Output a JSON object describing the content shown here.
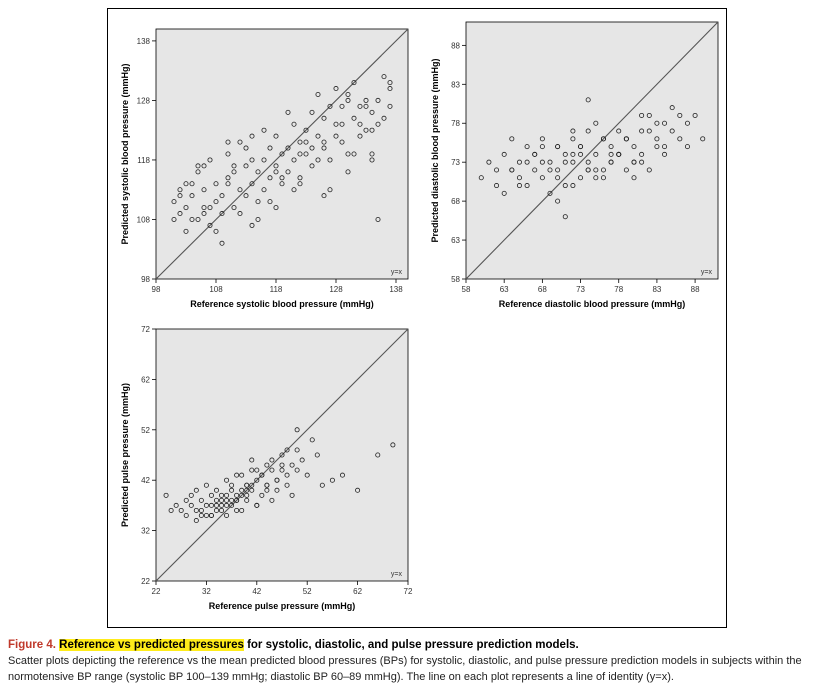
{
  "chart_data": [
    {
      "type": "scatter",
      "xlabel": "Reference systolic blood pressure (mmHg)",
      "ylabel": "Predicted systolic blood pressure (mmHg)",
      "xlim": [
        98,
        140
      ],
      "ylim": [
        98,
        140
      ],
      "xticks": [
        98,
        108,
        118,
        128,
        138
      ],
      "yticks": [
        98,
        108,
        118,
        128,
        138
      ],
      "identity_label": "y=x",
      "background": "#e6e6e6",
      "x": [
        101,
        101,
        102,
        102,
        103,
        103,
        104,
        104,
        105,
        105,
        106,
        106,
        107,
        107,
        108,
        108,
        109,
        109,
        110,
        110,
        111,
        111,
        112,
        112,
        113,
        113,
        114,
        114,
        115,
        115,
        116,
        116,
        117,
        117,
        118,
        118,
        119,
        119,
        120,
        120,
        121,
        121,
        122,
        122,
        123,
        123,
        124,
        124,
        125,
        125,
        126,
        126,
        127,
        127,
        128,
        128,
        129,
        129,
        130,
        130,
        131,
        131,
        132,
        132,
        133,
        133,
        134,
        134,
        135,
        135,
        136,
        136,
        137,
        137,
        102,
        104,
        106,
        108,
        110,
        112,
        114,
        116,
        118,
        120,
        122,
        124,
        126,
        128,
        130,
        132,
        134,
        103,
        107,
        111,
        115,
        119,
        123,
        127,
        131,
        135,
        105,
        109,
        113,
        117,
        121,
        125,
        129,
        133,
        137,
        106,
        110,
        114,
        118,
        122,
        126,
        130,
        134
      ],
      "y": [
        108,
        111,
        109,
        113,
        110,
        106,
        112,
        114,
        108,
        116,
        110,
        113,
        107,
        118,
        111,
        114,
        109,
        112,
        115,
        119,
        110,
        116,
        113,
        121,
        112,
        117,
        114,
        122,
        116,
        111,
        118,
        113,
        115,
        120,
        117,
        122,
        114,
        119,
        120,
        116,
        118,
        124,
        121,
        115,
        123,
        119,
        126,
        117,
        122,
        129,
        120,
        125,
        127,
        118,
        124,
        130,
        121,
        127,
        128,
        119,
        125,
        131,
        122,
        127,
        123,
        128,
        126,
        118,
        124,
        108,
        132,
        125,
        130,
        127,
        112,
        108,
        117,
        106,
        121,
        109,
        118,
        123,
        110,
        126,
        114,
        120,
        112,
        122,
        116,
        124,
        119,
        114,
        110,
        117,
        108,
        115,
        121,
        113,
        119,
        128,
        117,
        104,
        120,
        111,
        113,
        118,
        124,
        127,
        131,
        109,
        114,
        107,
        116,
        119,
        121,
        129,
        123
      ]
    },
    {
      "type": "scatter",
      "xlabel": "Reference diastolic blood pressure (mmHg)",
      "ylabel": "Predicted diastolic blood pressure (mmHg)",
      "xlim": [
        58,
        91
      ],
      "ylim": [
        58,
        91
      ],
      "xticks": [
        58,
        63,
        68,
        73,
        78,
        83,
        88
      ],
      "yticks": [
        58,
        63,
        68,
        73,
        78,
        83,
        88
      ],
      "identity_label": "y=x",
      "background": "#e6e6e6",
      "x": [
        60,
        61,
        62,
        62,
        63,
        63,
        64,
        64,
        65,
        65,
        66,
        66,
        67,
        67,
        68,
        68,
        69,
        69,
        70,
        70,
        71,
        71,
        72,
        72,
        73,
        73,
        74,
        74,
        75,
        75,
        76,
        76,
        77,
        77,
        78,
        78,
        79,
        79,
        80,
        80,
        81,
        81,
        82,
        82,
        83,
        83,
        84,
        84,
        85,
        86,
        86,
        87,
        87,
        88,
        89,
        64,
        66,
        68,
        70,
        72,
        74,
        76,
        78,
        80,
        82,
        84,
        65,
        67,
        69,
        71,
        73,
        75,
        77,
        79,
        81,
        83,
        85,
        70,
        72,
        74,
        76,
        78,
        80,
        71,
        73,
        75,
        77,
        79,
        81,
        68,
        70,
        72,
        74
      ],
      "y": [
        71,
        73,
        70,
        72,
        74,
        69,
        72,
        76,
        71,
        73,
        75,
        70,
        74,
        72,
        76,
        71,
        73,
        69,
        75,
        72,
        74,
        70,
        76,
        73,
        71,
        75,
        73,
        77,
        72,
        74,
        76,
        71,
        75,
        73,
        77,
        74,
        72,
        76,
        75,
        73,
        77,
        74,
        79,
        72,
        76,
        75,
        78,
        74,
        77,
        79,
        76,
        78,
        75,
        79,
        76,
        72,
        73,
        75,
        71,
        74,
        72,
        76,
        74,
        73,
        77,
        75,
        70,
        74,
        72,
        73,
        75,
        71,
        74,
        76,
        73,
        78,
        80,
        68,
        70,
        72,
        72,
        74,
        71,
        66,
        74,
        78,
        73,
        76,
        79,
        73,
        75,
        77,
        81
      ]
    },
    {
      "type": "scatter",
      "xlabel": "Reference pulse pressure (mmHg)",
      "ylabel": "Predicted pulse pressure (mmHg)",
      "xlim": [
        22,
        72
      ],
      "ylim": [
        22,
        72
      ],
      "xticks": [
        22,
        32,
        42,
        52,
        62,
        72
      ],
      "yticks": [
        22,
        32,
        42,
        52,
        62,
        72
      ],
      "identity_label": "y=x",
      "background": "#e6e6e6",
      "x": [
        24,
        25,
        26,
        27,
        28,
        28,
        29,
        29,
        30,
        30,
        31,
        31,
        32,
        32,
        33,
        33,
        34,
        34,
        35,
        35,
        36,
        36,
        37,
        37,
        38,
        38,
        39,
        39,
        40,
        40,
        41,
        41,
        42,
        42,
        43,
        43,
        44,
        44,
        45,
        45,
        46,
        46,
        47,
        47,
        48,
        48,
        49,
        49,
        50,
        50,
        51,
        52,
        53,
        54,
        55,
        57,
        59,
        62,
        66,
        69,
        30,
        32,
        34,
        36,
        38,
        40,
        42,
        44,
        46,
        48,
        33,
        35,
        37,
        39,
        41,
        43,
        45,
        31,
        33,
        35,
        37,
        39,
        41,
        34,
        36,
        38,
        40,
        42,
        44,
        47,
        50,
        36,
        38,
        40
      ],
      "y": [
        39,
        36,
        37,
        36,
        38,
        35,
        37,
        39,
        36,
        40,
        35,
        38,
        37,
        41,
        35,
        39,
        37,
        40,
        36,
        38,
        39,
        42,
        37,
        40,
        38,
        43,
        36,
        39,
        41,
        38,
        44,
        40,
        37,
        42,
        43,
        39,
        45,
        41,
        38,
        46,
        42,
        40,
        44,
        47,
        41,
        43,
        45,
        39,
        48,
        44,
        46,
        43,
        50,
        47,
        41,
        42,
        43,
        40,
        47,
        49,
        34,
        35,
        36,
        37,
        38,
        39,
        37,
        40,
        42,
        48,
        35,
        37,
        38,
        40,
        41,
        43,
        44,
        36,
        37,
        39,
        41,
        43,
        46,
        38,
        35,
        39,
        40,
        44,
        41,
        45,
        52,
        38,
        36,
        41
      ]
    }
  ],
  "caption": {
    "fig_num": "Figure 4.",
    "title_highlight": "Reference vs predicted pressures",
    "title_rest": " for systolic, diastolic, and pulse pressure prediction models.",
    "description": "Scatter plots depicting the reference vs the mean predicted blood pressures (BPs) for systolic, diastolic, and pulse pressure prediction models in subjects within the normotensive BP range (systolic BP 100–139 mmHg; diastolic BP 60–89 mmHg). The line on each plot represents a line of identity (y=x)."
  }
}
